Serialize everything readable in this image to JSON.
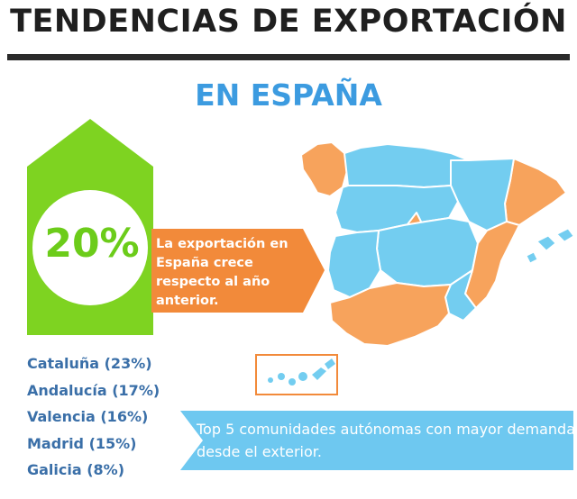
{
  "header": {
    "title": "TENDENCIAS DE EXPORTACIÓN",
    "subtitle": "EN ESPAÑA"
  },
  "growth": {
    "value": "20%",
    "description": "La exportación en España crece respecto al año anterior."
  },
  "top_regions": {
    "items": [
      "Cataluña (23%)",
      "Andalucía (17%)",
      "Valencia (16%)",
      "Madrid (15%)",
      "Galicia (8%)"
    ],
    "caption": "Top 5 comunidades autónomas con mayor demanda desde el exterior."
  },
  "colors": {
    "green": "#7ed321",
    "orange": "#f7a35c",
    "orange_dark": "#f28a3a",
    "blue_light": "#73cdf0",
    "blue_text": "#3a6fa8",
    "title_blue": "#3c9be0"
  }
}
